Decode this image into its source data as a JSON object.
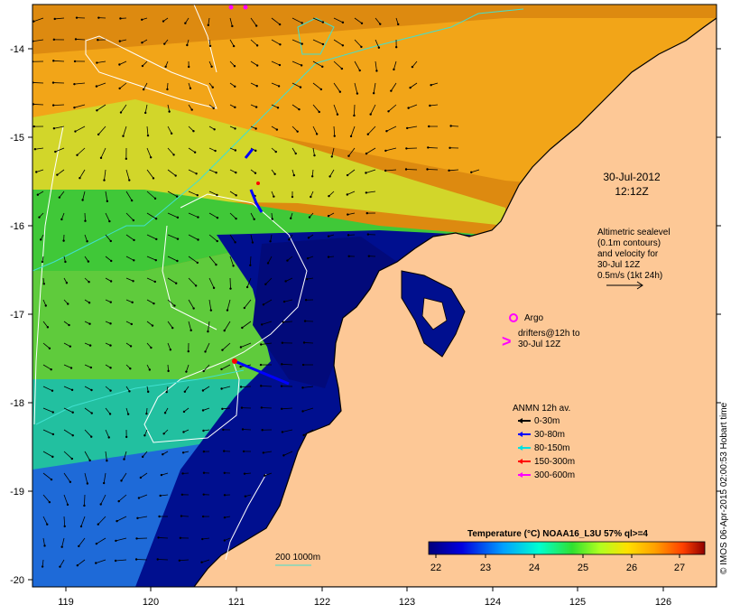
{
  "map": {
    "x_ticks": [
      "119",
      "120",
      "121",
      "122",
      "123",
      "124",
      "125",
      "126"
    ],
    "y_ticks": [
      "-14",
      "-15",
      "-16",
      "-17",
      "-18",
      "-19",
      "-20"
    ],
    "date_line1": "30-Jul-2012",
    "date_line2": "12:12Z",
    "altimetry_lines": [
      "Altimetric sealevel",
      "(0.1m contours)",
      "and velocity for",
      "30-Jul 12Z",
      "0.5m/s (1kt 24h)"
    ],
    "argo_label": "Argo",
    "drifters_lines": [
      "drifters@12h to",
      "30-Jul 12Z"
    ],
    "anmn_title": "ANMN 12h av.",
    "anmn_legend": [
      {
        "label": "0-30m",
        "color": "#000000"
      },
      {
        "label": "30-80m",
        "color": "#0000ff"
      },
      {
        "label": "80-150m",
        "color": "#00e0e0"
      },
      {
        "label": "150-300m",
        "color": "#ff0000"
      },
      {
        "label": "300-600m",
        "color": "#ff00ff"
      }
    ],
    "isobath_label": "200  1000m",
    "colorbar_title": "Temperature (°C) NOAA16_L3U 57% ql>=4",
    "colorbar_ticks": [
      "22",
      "23",
      "24",
      "25",
      "26",
      "27"
    ],
    "credit": "© IMOS 06-Apr-2015 02:00:53 Hobart time",
    "colors": {
      "land": "#fdc896",
      "cold": "#00008b",
      "warm": "#cc6a00",
      "contour": "#ffffff",
      "isobath": "#40e0d0",
      "argo": "#ff00ff"
    }
  }
}
